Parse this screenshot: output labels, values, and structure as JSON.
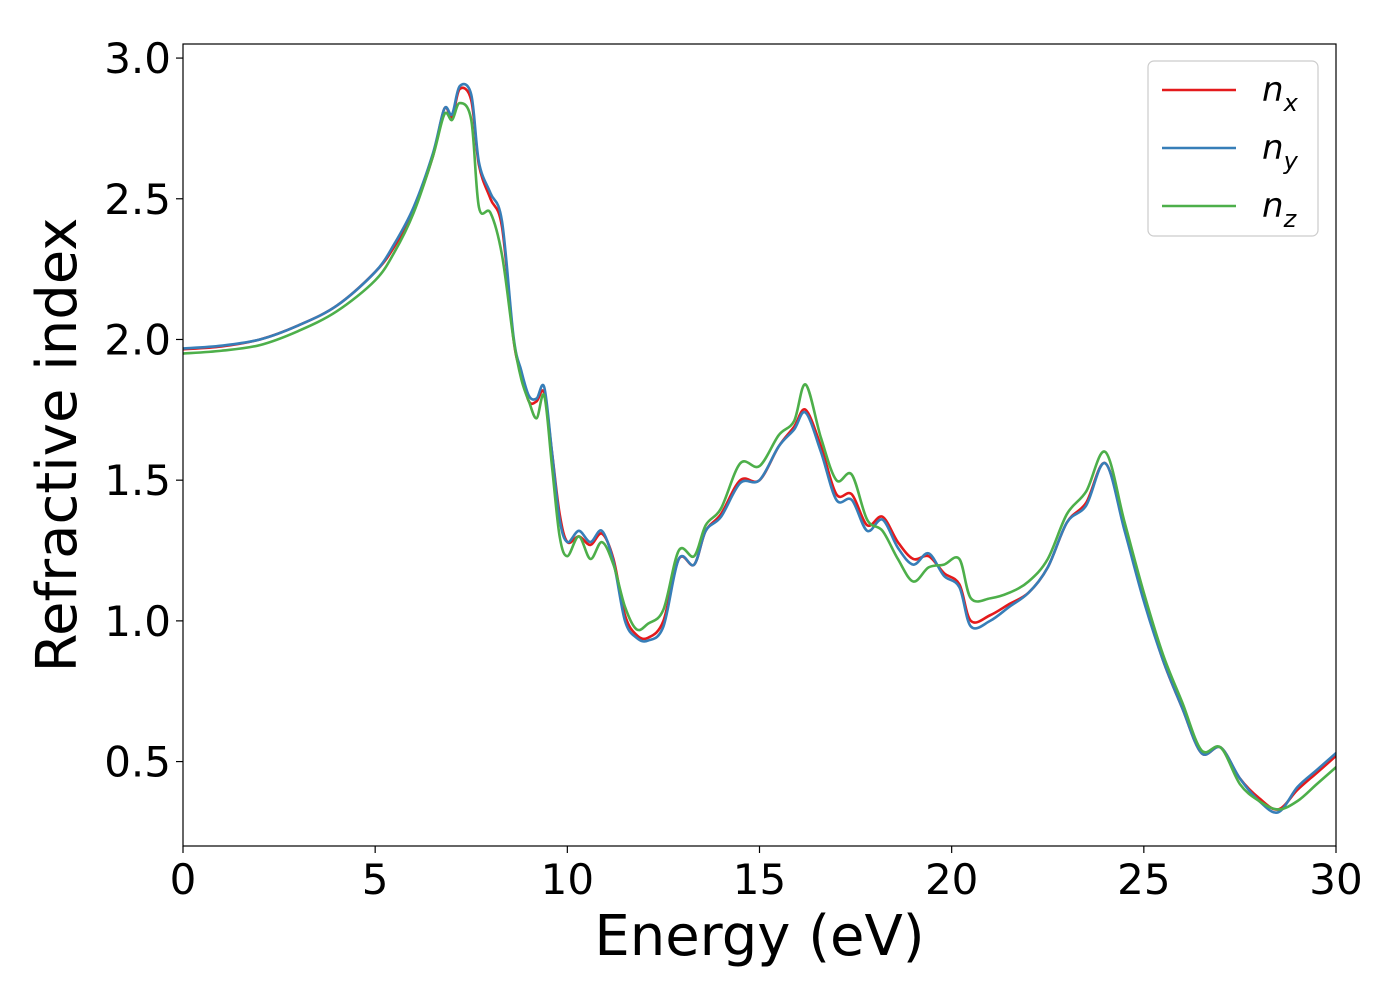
{
  "chart_data": {
    "type": "line",
    "xlabel": "Energy (eV)",
    "ylabel": "Refractive index",
    "xlim": [
      0,
      30
    ],
    "ylim": [
      0.2,
      3.05
    ],
    "xticks": [
      "0",
      "5",
      "10",
      "15",
      "20",
      "25",
      "30"
    ],
    "yticks": [
      "0.5",
      "1.0",
      "1.5",
      "2.0",
      "2.5",
      "3.0"
    ],
    "xtick_values": [
      0,
      5,
      10,
      15,
      20,
      25,
      30
    ],
    "ytick_values": [
      0.5,
      1.0,
      1.5,
      2.0,
      2.5,
      3.0
    ],
    "grid": false,
    "legend_position": "top-right",
    "series": [
      {
        "name": "n_x",
        "label_main": "n",
        "label_sub": "x",
        "color": "#e41a1c",
        "x": [
          0,
          1,
          2,
          3,
          4,
          5,
          5.5,
          6,
          6.5,
          6.8,
          7.0,
          7.2,
          7.5,
          7.7,
          8.0,
          8.3,
          8.6,
          8.8,
          9.0,
          9.2,
          9.4,
          9.6,
          9.8,
          10.0,
          10.3,
          10.6,
          10.9,
          11.2,
          11.5,
          11.8,
          12.1,
          12.5,
          12.9,
          13.3,
          13.6,
          14.0,
          14.5,
          15.0,
          15.5,
          15.9,
          16.2,
          16.6,
          17.0,
          17.4,
          17.8,
          18.2,
          18.6,
          19.0,
          19.4,
          19.8,
          20.2,
          20.5,
          21.0,
          21.5,
          22.0,
          22.5,
          23.0,
          23.5,
          24.0,
          24.5,
          25.0,
          25.5,
          26.0,
          26.5,
          27.0,
          27.5,
          28.0,
          28.5,
          29.0,
          29.5,
          30.0
        ],
        "y": [
          1.965,
          1.975,
          2.0,
          2.05,
          2.12,
          2.24,
          2.33,
          2.46,
          2.65,
          2.82,
          2.79,
          2.89,
          2.85,
          2.62,
          2.5,
          2.4,
          2.0,
          1.88,
          1.78,
          1.78,
          1.81,
          1.6,
          1.38,
          1.28,
          1.3,
          1.27,
          1.31,
          1.22,
          1.02,
          0.95,
          0.94,
          1.0,
          1.22,
          1.2,
          1.32,
          1.38,
          1.5,
          1.5,
          1.62,
          1.69,
          1.75,
          1.62,
          1.45,
          1.45,
          1.34,
          1.37,
          1.28,
          1.22,
          1.23,
          1.17,
          1.13,
          1.0,
          1.02,
          1.06,
          1.1,
          1.19,
          1.35,
          1.42,
          1.56,
          1.33,
          1.08,
          0.86,
          0.69,
          0.53,
          0.55,
          0.44,
          0.37,
          0.33,
          0.4,
          0.46,
          0.52
        ]
      },
      {
        "name": "n_y",
        "label_main": "n",
        "label_sub": "y",
        "color": "#377eb8",
        "x": [
          0,
          1,
          2,
          3,
          4,
          5,
          5.5,
          6,
          6.5,
          6.8,
          7.0,
          7.2,
          7.5,
          7.7,
          8.0,
          8.3,
          8.6,
          8.8,
          9.0,
          9.2,
          9.4,
          9.6,
          9.8,
          10.0,
          10.3,
          10.6,
          10.9,
          11.2,
          11.5,
          11.8,
          12.1,
          12.5,
          12.9,
          13.3,
          13.6,
          14.0,
          14.5,
          15.0,
          15.5,
          15.9,
          16.2,
          16.6,
          17.0,
          17.4,
          17.8,
          18.2,
          18.6,
          19.0,
          19.4,
          19.8,
          20.2,
          20.5,
          21.0,
          21.5,
          22.0,
          22.5,
          23.0,
          23.5,
          24.0,
          24.5,
          25.0,
          25.5,
          26.0,
          26.5,
          27.0,
          27.5,
          28.0,
          28.5,
          29.0,
          29.5,
          30.0
        ],
        "y": [
          1.968,
          1.978,
          2.0,
          2.05,
          2.12,
          2.24,
          2.34,
          2.47,
          2.66,
          2.82,
          2.8,
          2.9,
          2.87,
          2.63,
          2.52,
          2.42,
          2.01,
          1.89,
          1.8,
          1.79,
          1.83,
          1.6,
          1.36,
          1.28,
          1.32,
          1.28,
          1.32,
          1.21,
          1.0,
          0.94,
          0.93,
          0.98,
          1.22,
          1.2,
          1.32,
          1.37,
          1.49,
          1.5,
          1.62,
          1.68,
          1.74,
          1.6,
          1.43,
          1.43,
          1.32,
          1.36,
          1.26,
          1.2,
          1.24,
          1.16,
          1.12,
          0.98,
          1.0,
          1.05,
          1.1,
          1.19,
          1.35,
          1.41,
          1.56,
          1.32,
          1.07,
          0.86,
          0.69,
          0.53,
          0.55,
          0.44,
          0.36,
          0.32,
          0.41,
          0.47,
          0.53
        ]
      },
      {
        "name": "n_z",
        "label_main": "n",
        "label_sub": "z",
        "color": "#4daf4a",
        "x": [
          0,
          1,
          2,
          3,
          4,
          5,
          5.5,
          6,
          6.5,
          6.8,
          7.0,
          7.2,
          7.5,
          7.7,
          8.0,
          8.3,
          8.6,
          8.8,
          9.0,
          9.2,
          9.4,
          9.6,
          9.8,
          10.0,
          10.3,
          10.6,
          10.9,
          11.2,
          11.5,
          11.8,
          12.1,
          12.5,
          12.9,
          13.3,
          13.6,
          14.0,
          14.5,
          15.0,
          15.5,
          15.9,
          16.2,
          16.6,
          17.0,
          17.4,
          17.8,
          18.2,
          18.6,
          19.0,
          19.4,
          19.8,
          20.2,
          20.5,
          21.0,
          21.5,
          22.0,
          22.5,
          23.0,
          23.5,
          24.0,
          24.5,
          25.0,
          25.5,
          26.0,
          26.5,
          27.0,
          27.5,
          28.0,
          28.5,
          29.0,
          29.5,
          30.0
        ],
        "y": [
          1.95,
          1.96,
          1.98,
          2.03,
          2.1,
          2.21,
          2.31,
          2.45,
          2.65,
          2.8,
          2.78,
          2.84,
          2.78,
          2.47,
          2.45,
          2.3,
          2.0,
          1.86,
          1.78,
          1.72,
          1.8,
          1.55,
          1.3,
          1.23,
          1.3,
          1.22,
          1.28,
          1.2,
          1.05,
          0.97,
          0.99,
          1.04,
          1.25,
          1.23,
          1.34,
          1.4,
          1.56,
          1.55,
          1.66,
          1.71,
          1.84,
          1.65,
          1.5,
          1.52,
          1.36,
          1.32,
          1.22,
          1.14,
          1.19,
          1.2,
          1.22,
          1.08,
          1.08,
          1.1,
          1.14,
          1.22,
          1.38,
          1.46,
          1.6,
          1.35,
          1.1,
          0.88,
          0.71,
          0.54,
          0.55,
          0.42,
          0.36,
          0.33,
          0.36,
          0.42,
          0.48
        ]
      }
    ]
  }
}
